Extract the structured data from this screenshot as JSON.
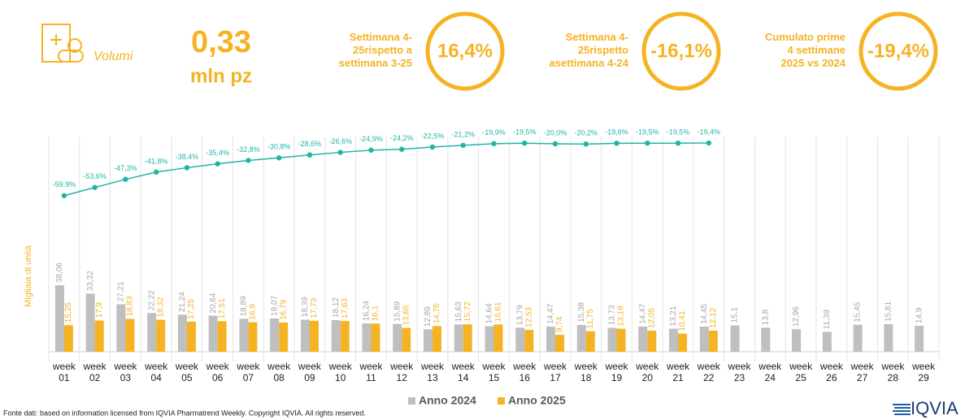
{
  "header": {
    "section": "Volumi",
    "value": "0,33",
    "unit": "mln pz",
    "kpis": [
      {
        "lines": [
          "Settimana 4-",
          "25rispetto a",
          "settimana 3-25"
        ],
        "value": "16,4%"
      },
      {
        "lines": [
          "Settimana 4-",
          "25rispetto",
          "asettimana 4-24"
        ],
        "value": "-16,1%"
      },
      {
        "lines": [
          "Cumulato prime",
          "4 settimane",
          "2025 vs 2024"
        ],
        "value": "-19,4%"
      }
    ]
  },
  "chart_data": {
    "type": "bar",
    "y_label": "Migliaia di unità",
    "categories": [
      "week 01",
      "week 02",
      "week 03",
      "week 04",
      "week 05",
      "week 06",
      "week 07",
      "week 08",
      "week 09",
      "week 10",
      "week 11",
      "week 12",
      "week 13",
      "week 14",
      "week 15",
      "week 16",
      "week 17",
      "week 18",
      "week 19",
      "week 20",
      "week 21",
      "week 22",
      "week 23",
      "week 24",
      "week 25",
      "week 26",
      "week 27",
      "week 28",
      "week 29"
    ],
    "ylim": [
      0,
      40
    ],
    "y2lim": [
      -100,
      0
    ],
    "legend": "bottom",
    "series": [
      {
        "name": "Anno 2024",
        "color": "#bfbfbf",
        "values": [
          38.06,
          33.32,
          27.21,
          22.22,
          21.24,
          20.64,
          18.89,
          19.07,
          18.39,
          18.12,
          16.24,
          15.89,
          12.89,
          15.63,
          14.64,
          13.79,
          14.47,
          15.38,
          13.73,
          14.47,
          13.21,
          14.45,
          15.1,
          13.8,
          12.96,
          11.39,
          15.45,
          15.81,
          14.9
        ],
        "value_labels": [
          "38,06",
          "33,32",
          "27,21",
          "22,22",
          "21,24",
          "20,64",
          "18,89",
          "19,07",
          "18,39",
          "18,12",
          "16,24",
          "15,89",
          "12,89",
          "15,63",
          "14,64",
          "13,79",
          "14,47",
          "15,38",
          "13,73",
          "14,47",
          "13,21",
          "14,45",
          "15,1",
          "13,8",
          "12,96",
          "11,39",
          "15,45",
          "15,81",
          "14,9"
        ]
      },
      {
        "name": "Anno 2025",
        "color": "#f5b324",
        "values": [
          15.25,
          17.9,
          18.83,
          18.32,
          17.25,
          17.51,
          16.9,
          16.79,
          17.73,
          17.63,
          16.1,
          13.65,
          14.76,
          15.72,
          15.61,
          12.53,
          9.74,
          11.75,
          13.19,
          12.05,
          10.41,
          12.12,
          null,
          null,
          null,
          null,
          null,
          null,
          null
        ],
        "value_labels": [
          "15,25",
          "17,9",
          "18,83",
          "18,32",
          "17,25",
          "17,51",
          "16,9",
          "16,79",
          "17,73",
          "17,63",
          "16,1",
          "13,65",
          "14,76",
          "15,72",
          "15,61",
          "12,53",
          "9,74",
          "11,75",
          "13,19",
          "12,05",
          "10,41",
          "12,12",
          null,
          null,
          null,
          null,
          null,
          null,
          null
        ]
      },
      {
        "type": "line",
        "axis": "y2",
        "color": "#1fb5a6",
        "values": [
          -59.9,
          -53.6,
          -47.3,
          -41.8,
          -38.4,
          -35.4,
          -32.8,
          -30.8,
          -28.6,
          -26.6,
          -24.9,
          -24.2,
          -22.5,
          -21.2,
          -19.9,
          -19.5,
          -20.0,
          -20.2,
          -19.6,
          -19.5,
          -19.5,
          -19.4,
          null,
          null,
          null,
          null,
          null,
          null,
          null
        ],
        "value_labels": [
          "-59,9%",
          "-53,6%",
          "-47,3%",
          "-41,8%",
          "-38,4%",
          "-35,4%",
          "-32,8%",
          "-30,8%",
          "-28,6%",
          "-26,6%",
          "-24,9%",
          "-24,2%",
          "-22,5%",
          "-21,2%",
          "-19,9%",
          "-19,5%",
          "-20,0%",
          "-20,2%",
          "-19,6%",
          "-19,5%",
          "-19,5%",
          "-19,4%",
          null,
          null,
          null,
          null,
          null,
          null,
          null
        ]
      }
    ]
  },
  "footer": {
    "source": "Fonte dati: based on information licensed from IQVIA Pharmatrend Weekly. Copyright IQVIA. All rights reserved.",
    "logo": "IQVIA"
  }
}
